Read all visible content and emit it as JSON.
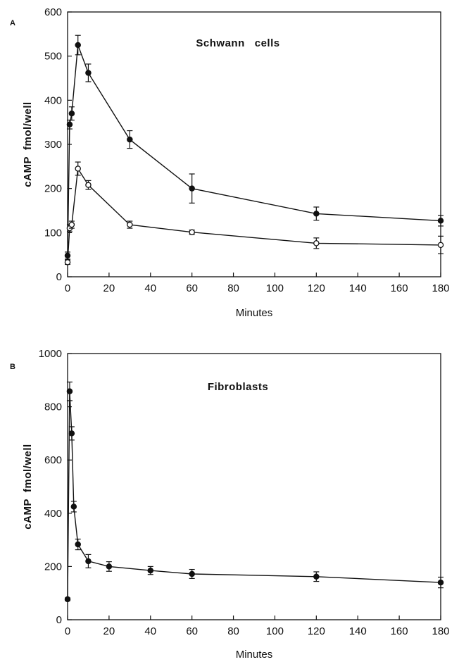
{
  "chart_data": [
    {
      "type": "line",
      "panel_label": "A",
      "title": "Schwann   cells",
      "xlabel": "Minutes",
      "ylabel": "cAMP  fmol/well",
      "xlim": [
        0,
        180
      ],
      "ylim": [
        0,
        600
      ],
      "xticks": [
        0,
        20,
        40,
        60,
        80,
        100,
        120,
        140,
        160,
        180
      ],
      "yticks": [
        0,
        100,
        200,
        300,
        400,
        500,
        600
      ],
      "grid": false,
      "series": [
        {
          "marker": "filled-circle",
          "x": [
            0,
            1,
            2,
            5,
            10,
            30,
            60,
            120,
            180
          ],
          "y": [
            48,
            345,
            370,
            525,
            462,
            311,
            200,
            143,
            127
          ],
          "err": [
            8,
            10,
            15,
            22,
            20,
            20,
            33,
            15,
            12
          ]
        },
        {
          "marker": "open-circle",
          "x": [
            0,
            1,
            2,
            5,
            10,
            30,
            60,
            120,
            180
          ],
          "y": [
            33,
            110,
            118,
            245,
            208,
            118,
            101,
            76,
            72
          ],
          "err": [
            5,
            8,
            8,
            15,
            10,
            8,
            5,
            12,
            20
          ]
        }
      ]
    },
    {
      "type": "line",
      "panel_label": "B",
      "title": "Fibroblasts",
      "xlabel": "Minutes",
      "ylabel": "cAMP  fmol/well",
      "xlim": [
        0,
        180
      ],
      "ylim": [
        0,
        1000
      ],
      "xticks": [
        0,
        20,
        40,
        60,
        80,
        100,
        120,
        140,
        160,
        180
      ],
      "yticks": [
        0,
        200,
        400,
        600,
        800,
        1000
      ],
      "grid": false,
      "series": [
        {
          "marker": "filled-circle",
          "x": [
            0,
            1,
            2,
            3,
            5,
            10,
            20,
            40,
            60,
            120,
            180
          ],
          "y": [
            77,
            858,
            700,
            425,
            283,
            220,
            200,
            185,
            172,
            162,
            140
          ],
          "err": [
            5,
            35,
            25,
            20,
            20,
            25,
            18,
            15,
            17,
            18,
            20
          ]
        }
      ]
    }
  ]
}
